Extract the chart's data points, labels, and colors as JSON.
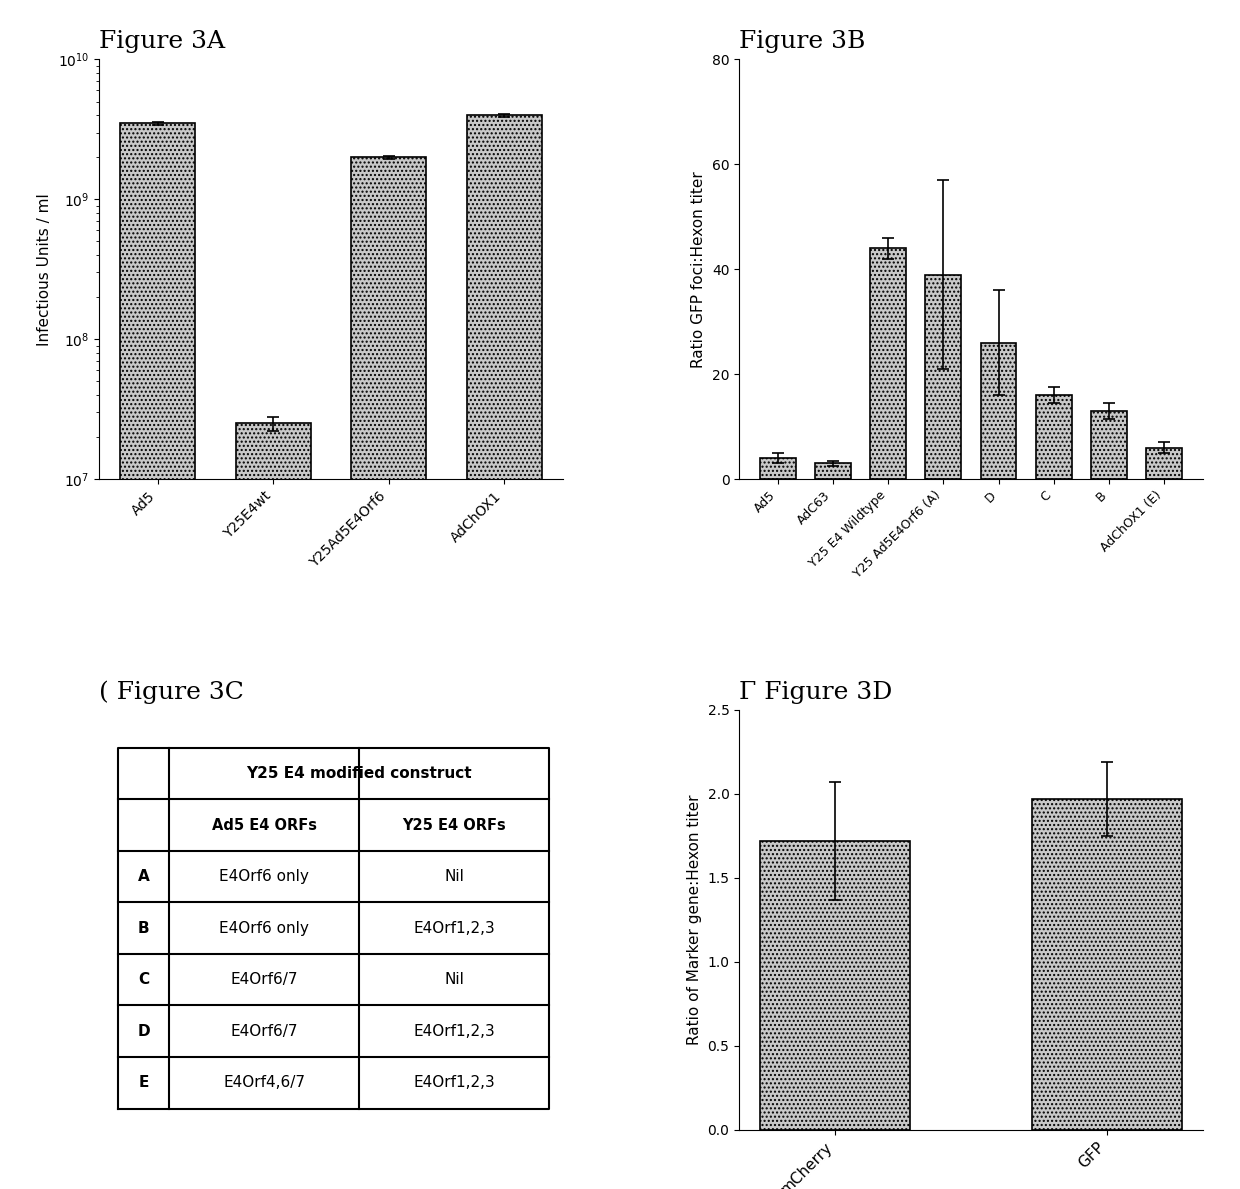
{
  "fig3A": {
    "title": "Figure 3A",
    "categories": [
      "Ad5",
      "Y25E4wt",
      "Y25Ad5E4Orf6",
      "AdChOX1"
    ],
    "values": [
      3500000000.0,
      25000000.0,
      2000000000.0,
      4000000000.0
    ],
    "errors": [
      100000000.0,
      3000000.0,
      50000000.0,
      100000000.0
    ],
    "ylabel": "Infectious Units / ml"
  },
  "fig3B": {
    "title": "Figure 3B",
    "categories": [
      "Ad5",
      "AdC63",
      "Y25 E4 Wildtype",
      "Y25 Ad5E4Orf6 (A)",
      "D",
      "C",
      "B",
      "AdChOX1 (E)"
    ],
    "values": [
      4.0,
      3.0,
      44.0,
      39.0,
      26.0,
      16.0,
      13.0,
      6.0
    ],
    "errors": [
      1.0,
      0.5,
      2.0,
      18.0,
      10.0,
      1.5,
      1.5,
      1.0
    ],
    "ylabel": "Ratio GFP foci:Hexon titer",
    "ylim": [
      0,
      80
    ],
    "yticks": [
      0,
      20,
      40,
      60,
      80
    ]
  },
  "fig3C": {
    "title": "( Figure 3C",
    "header_main": "Y25 E4 modified construct",
    "col1_header": "Ad5 E4 ORFs",
    "col2_header": "Y25 E4 ORFs",
    "rows": [
      [
        "A",
        "E4Orf6 only",
        "Nil"
      ],
      [
        "B",
        "E4Orf6 only",
        "E4Orf1,2,3"
      ],
      [
        "C",
        "E4Orf6/7",
        "Nil"
      ],
      [
        "D",
        "E4Orf6/7",
        "E4Orf1,2,3"
      ],
      [
        "E",
        "E4Orf4,6/7",
        "E4Orf1,2,3"
      ]
    ]
  },
  "fig3D": {
    "title": "Γ Figure 3D",
    "categories": [
      "mCherry",
      "GFP"
    ],
    "values": [
      1.72,
      1.97
    ],
    "errors": [
      0.35,
      0.22
    ],
    "ylabel": "Ratio of Marker gene:Hexon titer",
    "ylim": [
      0,
      2.5
    ],
    "yticks": [
      0.0,
      0.5,
      1.0,
      1.5,
      2.0,
      2.5
    ]
  },
  "bar_color": "#c8c8c8",
  "bar_edge_color": "#000000",
  "background_color": "#ffffff",
  "figure_title_fontsize": 18,
  "axis_label_fontsize": 11,
  "tick_fontsize": 10
}
